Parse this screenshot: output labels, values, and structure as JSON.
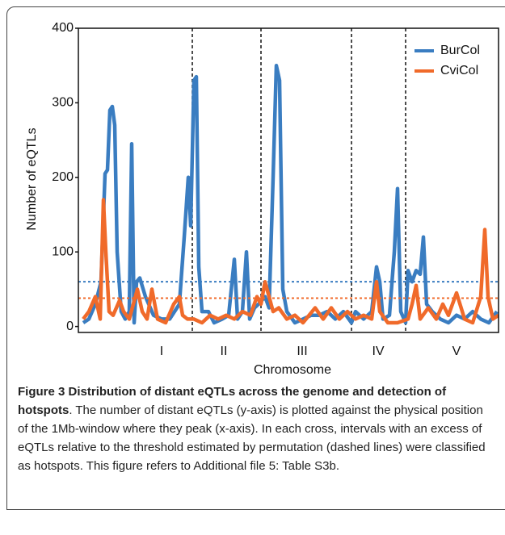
{
  "chart_data": {
    "type": "line",
    "xlabel": "Chromosome",
    "ylabel": "Number of eQTLs",
    "xlim": [
      0,
      104
    ],
    "ylim": [
      -8,
      400
    ],
    "yticks": [
      0,
      100,
      200,
      300,
      400
    ],
    "legend": "upper right",
    "chromosome_boundaries": [
      28.2,
      45.2,
      67.6,
      81
    ],
    "chromosomes": {
      "labels": [
        "I",
        "II",
        "III",
        "IV",
        "V"
      ],
      "centers": [
        20.6,
        36,
        55.4,
        74.2,
        93.6
      ]
    },
    "series": [
      {
        "name": "BurCol",
        "color": "#3a7dc1",
        "threshold": 60,
        "x": [
          1.2,
          2.6,
          4.2,
          5.6,
          6.6,
          7.2,
          7.8,
          8.4,
          9,
          9.6,
          10.6,
          11.6,
          12.6,
          13.2,
          13.8,
          14.4,
          15.2,
          16.6,
          18.6,
          20.6,
          22.6,
          25,
          26.2,
          27.2,
          27.8,
          28.6,
          29.2,
          29.8,
          30.6,
          32.2,
          33.6,
          35.6,
          37.2,
          38.6,
          39.4,
          40.6,
          41.6,
          42.4,
          43.6,
          44.6,
          46.2,
          47.2,
          48.2,
          49,
          49.8,
          50.6,
          51.6,
          53.6,
          55.6,
          57.6,
          59.6,
          61.6,
          63.6,
          65.6,
          67.6,
          68.6,
          70.6,
          72.6,
          73.8,
          74.6,
          75.4,
          77,
          78.2,
          79,
          79.8,
          81,
          81.6,
          82.6,
          83.6,
          84.6,
          85.4,
          86.2,
          87.6,
          89.6,
          91.6,
          93.6,
          95.6,
          97.6,
          99.6,
          101.6,
          103.6
        ],
        "values": [
          5,
          10,
          30,
          60,
          205,
          210,
          290,
          295,
          270,
          100,
          20,
          10,
          20,
          245,
          5,
          60,
          65,
          40,
          15,
          10,
          10,
          30,
          120,
          200,
          135,
          330,
          335,
          80,
          20,
          20,
          5,
          10,
          15,
          90,
          10,
          20,
          100,
          10,
          25,
          30,
          40,
          25,
          200,
          350,
          330,
          50,
          20,
          5,
          10,
          15,
          15,
          20,
          10,
          20,
          5,
          20,
          10,
          20,
          80,
          60,
          10,
          15,
          100,
          185,
          20,
          5,
          75,
          60,
          75,
          70,
          120,
          30,
          20,
          10,
          5,
          15,
          10,
          20,
          10,
          5,
          20
        ]
      },
      {
        "name": "CviCol",
        "color": "#f06a2a",
        "threshold": 38,
        "x": [
          1.2,
          2.6,
          4.2,
          5.4,
          6.2,
          6.8,
          7.6,
          8.6,
          10.2,
          11.2,
          12.6,
          13.6,
          14.6,
          15.8,
          17,
          18.2,
          19.6,
          21.6,
          23.6,
          25,
          25.8,
          27,
          28.6,
          30.6,
          32.6,
          34.6,
          36.6,
          38.6,
          40.6,
          42.6,
          44.2,
          45.2,
          46.2,
          47.2,
          48.2,
          49.6,
          51.6,
          53.6,
          55.6,
          58.6,
          60.6,
          62.6,
          64.6,
          66.6,
          68.6,
          70.6,
          72.6,
          73.8,
          74.6,
          76.6,
          79,
          81.6,
          82.6,
          83.6,
          84.6,
          86.6,
          88.6,
          90.2,
          91.6,
          93.6,
          95.6,
          97.6,
          99.6,
          100.6,
          101.4,
          102.6,
          104
        ],
        "values": [
          10,
          20,
          40,
          10,
          170,
          100,
          20,
          15,
          35,
          20,
          10,
          30,
          50,
          20,
          10,
          50,
          10,
          5,
          30,
          40,
          15,
          10,
          10,
          5,
          15,
          10,
          15,
          10,
          20,
          15,
          40,
          30,
          60,
          40,
          20,
          25,
          10,
          15,
          5,
          25,
          10,
          25,
          10,
          20,
          10,
          15,
          10,
          60,
          20,
          5,
          5,
          10,
          30,
          55,
          10,
          25,
          10,
          30,
          15,
          45,
          10,
          5,
          40,
          130,
          40,
          10,
          15
        ]
      }
    ]
  },
  "caption": {
    "label": "Figure 3",
    "title": "Distribution of distant eQTLs across the genome and detection of hotspots",
    "text": ". The number of distant eQTLs (y-axis) is plotted against the physical position of the 1Mb-window where they peak (x-axis). In each cross, intervals with an excess of eQTLs relative to the threshold estimated by permutation (dashed lines) were classified as hotspots. This figure refers to Additional file 5: Table S3b."
  }
}
